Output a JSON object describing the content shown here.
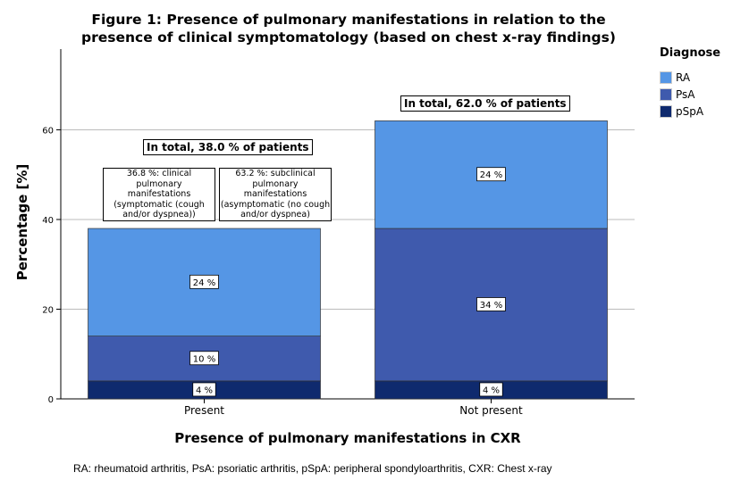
{
  "chart_data": {
    "type": "bar",
    "stacked": true,
    "title": "Figure 1: Presence of pulmonary manifestations in relation to the presence of clinical symptomatology (based on chest x-ray findings)",
    "xlabel": "Presence of pulmonary manifestations in CXR",
    "ylabel": "Percentage [%]",
    "ylim": [
      0,
      78
    ],
    "yticks": [
      0,
      20,
      40,
      60
    ],
    "grid": true,
    "categories": [
      "Present",
      "Not present"
    ],
    "legend": {
      "title": "Diagnose",
      "position": "right"
    },
    "series": [
      {
        "name": "pSpA",
        "values": [
          4,
          4
        ],
        "labels": [
          "4 %",
          "4 %"
        ],
        "color": "#0f2a6e"
      },
      {
        "name": "PsA",
        "values": [
          10,
          34
        ],
        "labels": [
          "10 %",
          "34 %"
        ],
        "color": "#3f5aad"
      },
      {
        "name": "RA",
        "values": [
          24,
          24
        ],
        "labels": [
          "24 %",
          "24 %"
        ],
        "color": "#5596e5"
      }
    ],
    "annotations": {
      "totals": [
        "In total, 38.0 % of patients",
        "In total, 62.0 % of patients"
      ],
      "clinical": "36.8 %: clinical pulmonary manifestations (symptomatic (cough and/or dyspnea))",
      "subclinical": "63.2 %: subclinical pulmonary manifestations (asymptomatic (no cough and/or dyspnea)"
    },
    "note": "RA: rheumatoid arthritis, PsA: psoriatic arthritis, pSpA: peripheral spondyloarthritis, CXR: Chest x-ray"
  }
}
